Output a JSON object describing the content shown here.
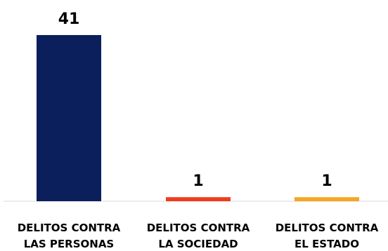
{
  "chart_data": {
    "type": "bar",
    "title": "",
    "xlabel": "",
    "ylabel": "",
    "categories": [
      [
        "DELITOS CONTRA",
        "LAS PERSONAS"
      ],
      [
        "DELITOS CONTRA",
        "LA SOCIEDAD"
      ],
      [
        "DELITOS CONTRA",
        "EL ESTADO"
      ]
    ],
    "values": [
      41,
      1,
      1
    ],
    "data_labels": [
      "41",
      "1",
      "1"
    ],
    "colors": [
      "#0b1f5c",
      "#f03c1e",
      "#f5a623"
    ],
    "ylim": [
      0,
      41
    ],
    "grid": false,
    "legend": "none"
  }
}
